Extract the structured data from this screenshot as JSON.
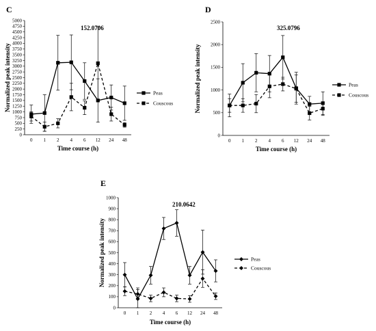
{
  "chart_data": [
    {
      "panel": "C",
      "type": "line",
      "annotation": "152.0706",
      "xlabel": "Time course (h)",
      "ylabel": "Normalized peak intensity",
      "categories": [
        "0",
        "1",
        "2",
        "4",
        "6",
        "12",
        "24",
        "48"
      ],
      "ylim": [
        0,
        5000
      ],
      "yticks": [
        "0",
        "250",
        "500",
        "750",
        "1000",
        "1250",
        "1500",
        "1750",
        "2000",
        "2250",
        "2500",
        "2750",
        "3000",
        "3250",
        "3500",
        "3750",
        "4000",
        "4250",
        "4500",
        "4750",
        "5000"
      ],
      "legend_position": "right",
      "series": [
        {
          "name": "Peas",
          "style": "solid",
          "marker": "square",
          "values": [
            900,
            950,
            3150,
            3170,
            2350,
            1500,
            1630,
            1380
          ],
          "errors": [
            400,
            800,
            1200,
            1200,
            800,
            950,
            550,
            750
          ]
        },
        {
          "name": "Couscous",
          "style": "dashed",
          "marker": "square",
          "values": [
            800,
            350,
            500,
            1650,
            1180,
            3130,
            900,
            430
          ],
          "errors": [
            200,
            200,
            200,
            600,
            300,
            1600,
            300,
            100
          ]
        }
      ]
    },
    {
      "panel": "D",
      "type": "line",
      "annotation": "325.0796",
      "xlabel": "Time course (h)",
      "ylabel": "Normalized peak intensity",
      "categories": [
        "0",
        "1",
        "2",
        "4",
        "6",
        "12",
        "24",
        "48"
      ],
      "ylim": [
        0,
        2500
      ],
      "yticks": [
        "0",
        "500",
        "1000",
        "1500",
        "2000",
        "2500"
      ],
      "legend_position": "right",
      "series": [
        {
          "name": "Peas",
          "style": "solid",
          "marker": "square",
          "values": [
            660,
            1160,
            1380,
            1360,
            1720,
            1040,
            690,
            710
          ],
          "errors": [
            250,
            420,
            420,
            400,
            480,
            350,
            170,
            250
          ]
        },
        {
          "name": "Couscous",
          "style": "dashed",
          "marker": "square",
          "values": [
            660,
            660,
            700,
            1080,
            1130,
            1030,
            490,
            590
          ],
          "errors": [
            150,
            150,
            200,
            250,
            150,
            300,
            150,
            150
          ]
        }
      ]
    },
    {
      "panel": "E",
      "type": "line",
      "annotation": "210.0642",
      "xlabel": "Time course (h)",
      "ylabel": "Normalized peak intensity",
      "categories": [
        "0",
        "1",
        "2",
        "4",
        "6",
        "12",
        "24",
        "48"
      ],
      "ylim": [
        0,
        1000
      ],
      "yticks": [
        "0",
        "100",
        "200",
        "300",
        "400",
        "500",
        "600",
        "700",
        "800",
        "900",
        "1000"
      ],
      "legend_position": "right",
      "series": [
        {
          "name": "Peas",
          "style": "solid",
          "marker": "diamond",
          "values": [
            300,
            80,
            295,
            720,
            770,
            295,
            505,
            335
          ],
          "errors": [
            110,
            100,
            80,
            100,
            120,
            80,
            200,
            100
          ]
        },
        {
          "name": "Couscous",
          "style": "dashed",
          "marker": "diamond",
          "values": [
            150,
            125,
            85,
            140,
            85,
            80,
            265,
            105
          ],
          "errors": [
            40,
            40,
            30,
            40,
            30,
            30,
            80,
            30
          ]
        }
      ]
    }
  ]
}
